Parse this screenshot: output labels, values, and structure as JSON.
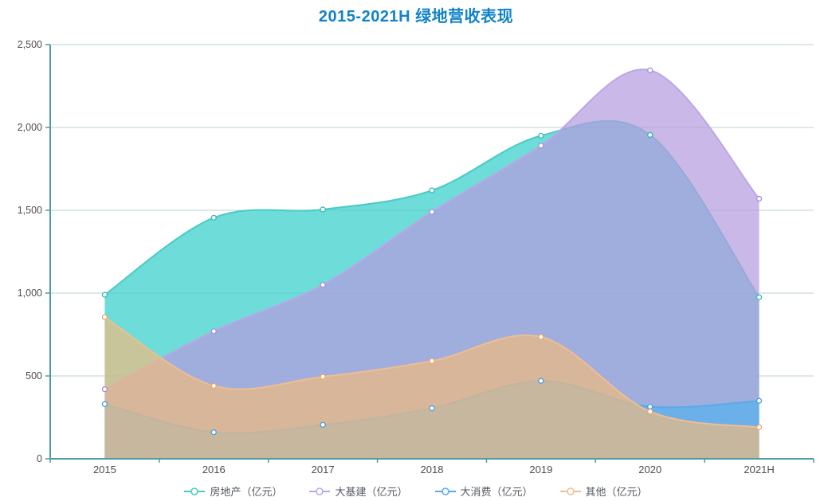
{
  "title": "2015-2021H 绿地营收表现",
  "title_color": "#1283c9",
  "chart_data": {
    "type": "area",
    "title": "2015-2021H 绿地营收表现",
    "subtitle": "",
    "categories": [
      "2015",
      "2016",
      "2017",
      "2018",
      "2019",
      "2020",
      "2021H"
    ],
    "series": [
      {
        "name": "房地产（亿元）",
        "values": [
          990,
          1455,
          1505,
          1620,
          1950,
          1955,
          975
        ],
        "fill": "rgba(62,208,203,0.75)",
        "line": "#49cbc4",
        "marker": "#38b8b2"
      },
      {
        "name": "大基建（亿元）",
        "values": [
          420,
          770,
          1050,
          1490,
          1890,
          2345,
          1570
        ],
        "fill": "rgba(180,156,223,0.72)",
        "line": "#bca6e6",
        "marker": "#a48fd8"
      },
      {
        "name": "大消费（亿元）",
        "values": [
          330,
          160,
          205,
          305,
          470,
          315,
          350
        ],
        "fill": "rgba(86,177,239,0.70)",
        "line": "#58aae8",
        "marker": "#4a9fe0"
      },
      {
        "name": "其他（亿元）",
        "values": [
          855,
          440,
          495,
          590,
          735,
          285,
          190
        ],
        "fill": "rgba(242,186,122,0.68)",
        "line": "#f0bd92",
        "marker": "#eda668"
      }
    ],
    "xlabel": "",
    "ylabel": "",
    "ylim": [
      0,
      2500
    ],
    "y_ticks": {
      "values": [
        0,
        500,
        1000,
        1500,
        2000,
        2500
      ],
      "labels": [
        "0",
        "500",
        "1,000",
        "1,500",
        "2,000",
        "2,500"
      ]
    },
    "smooth": true,
    "grid": "horizontal",
    "legend_position": "bottom",
    "colors": {
      "axis": "#4f9ba1",
      "gridline": "#bdd1d4",
      "tick_text": "#4d4d4d",
      "marker_fill": "#ffffff"
    }
  }
}
